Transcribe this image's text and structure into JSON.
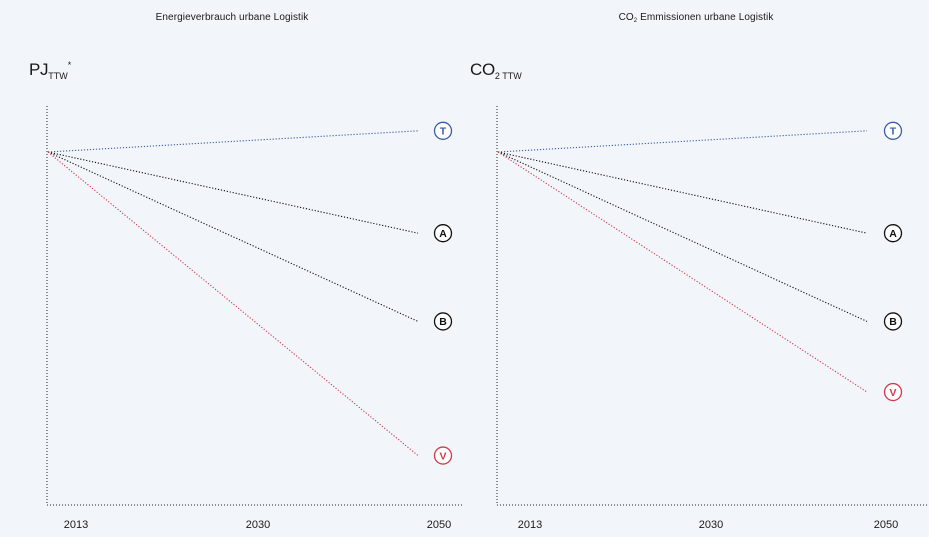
{
  "charts": [
    {
      "title_text": "Energieverbrauch urbane Logistik",
      "title_sub": "",
      "title_rest": "",
      "unit_main": "PJ",
      "unit_sub": "TTW",
      "unit_sup": "*"
    },
    {
      "title_text": "CO",
      "title_sub": "2",
      "title_rest": " Emmissionen urbane Logistik",
      "unit_main": "CO",
      "unit_sub": "2 TTW",
      "unit_sup": ""
    }
  ],
  "chart_data": [
    {
      "type": "line",
      "x": [
        2013,
        2050
      ],
      "xticks": [
        "2013",
        "2030",
        "2050"
      ],
      "ylim": [
        0,
        100
      ],
      "series": [
        {
          "label": "T",
          "color": "#3a5ea8",
          "values": [
            100,
            106
          ]
        },
        {
          "label": "A",
          "color": "#111111",
          "values": [
            100,
            77
          ]
        },
        {
          "label": "B",
          "color": "#111111",
          "values": [
            100,
            52
          ]
        },
        {
          "label": "V",
          "color": "#d03a4a",
          "values": [
            100,
            14
          ]
        }
      ]
    },
    {
      "type": "line",
      "x": [
        2013,
        2050
      ],
      "xticks": [
        "2013",
        "2030",
        "2050"
      ],
      "ylim": [
        0,
        100
      ],
      "series": [
        {
          "label": "T",
          "color": "#3a5ea8",
          "values": [
            100,
            106
          ]
        },
        {
          "label": "A",
          "color": "#111111",
          "values": [
            100,
            77
          ]
        },
        {
          "label": "B",
          "color": "#111111",
          "values": [
            100,
            52
          ]
        },
        {
          "label": "V",
          "color": "#d03a4a",
          "values": [
            100,
            32
          ]
        }
      ]
    }
  ]
}
